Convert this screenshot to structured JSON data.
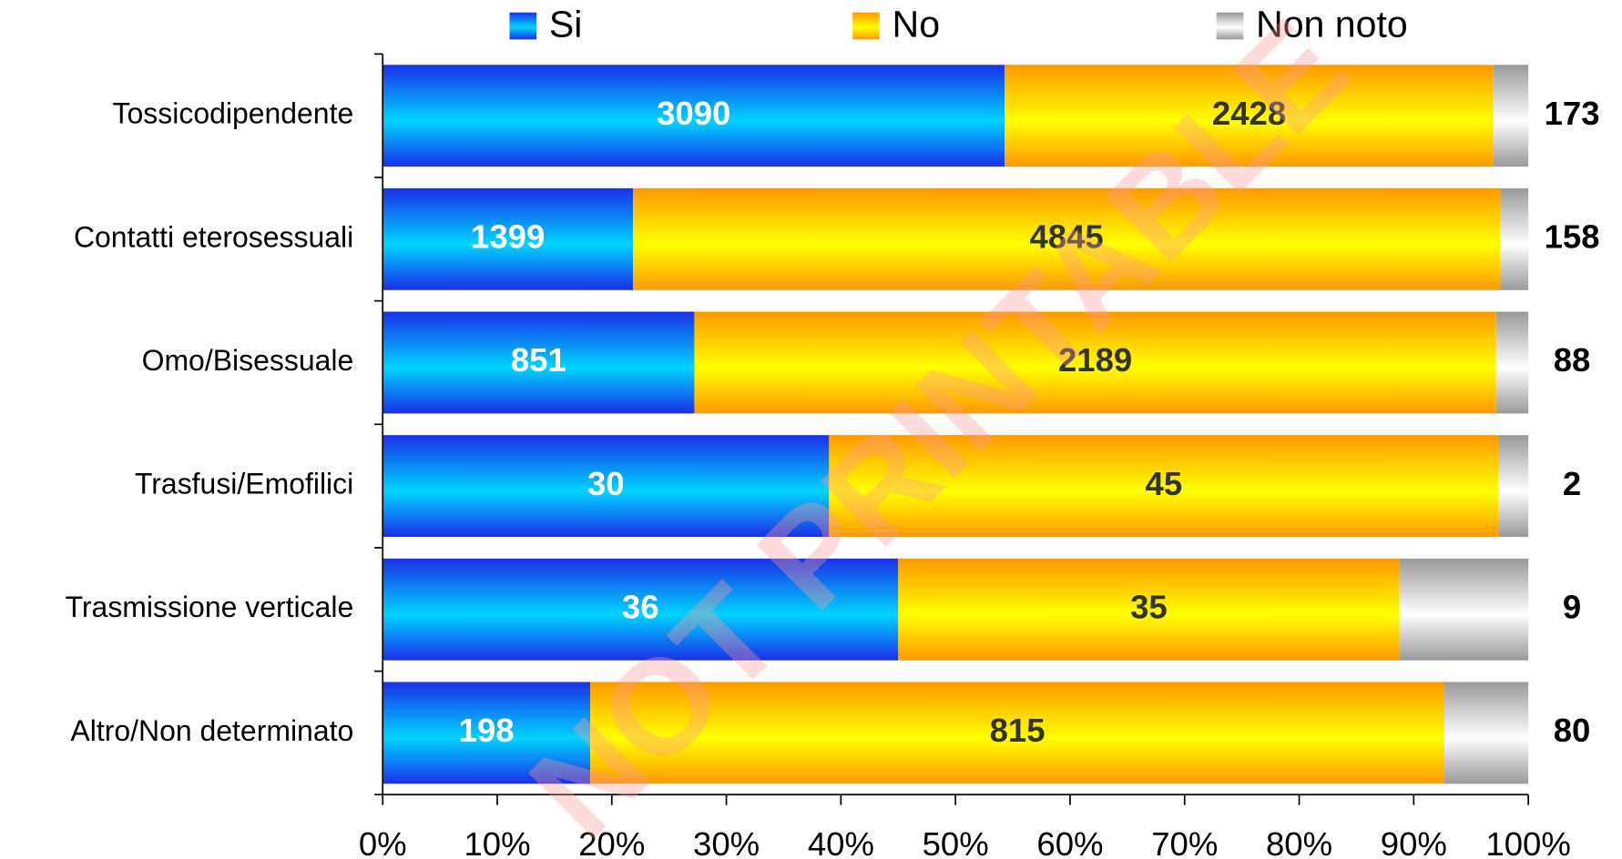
{
  "chart_data": {
    "type": "stacked_bar_percent",
    "orientation": "horizontal",
    "watermark": "NOT PRINTABLE",
    "categories": [
      "Tossicodipendente",
      "Contatti eterosessuali",
      "Omo/Bisessuale",
      "Trasfusi/Emofilici",
      "Trasmissione verticale",
      "Altro/Non determinato"
    ],
    "series": [
      {
        "name": "Si",
        "color": "#1a30e8",
        "highlight": "#00d4ff",
        "label_color": "#ffffff",
        "values": [
          3090,
          1399,
          851,
          30,
          36,
          198
        ]
      },
      {
        "name": "No",
        "color": "#ff9900",
        "highlight": "#ffff00",
        "label_color": "#333333",
        "values": [
          2428,
          4845,
          2189,
          45,
          35,
          815
        ]
      },
      {
        "name": "Non noto",
        "color": "#999999",
        "highlight": "#ffffff",
        "label_color": "#000000",
        "values": [
          173,
          158,
          88,
          2,
          9,
          80
        ]
      }
    ],
    "xlim": [
      0,
      100
    ],
    "xticks": [
      {
        "value": 0,
        "label": "0%"
      },
      {
        "value": 10,
        "label": "10%"
      },
      {
        "value": 20,
        "label": "20%"
      },
      {
        "value": 30,
        "label": "30%"
      },
      {
        "value": 40,
        "label": "40%"
      },
      {
        "value": 50,
        "label": "50%"
      },
      {
        "value": 60,
        "label": "60%"
      },
      {
        "value": 70,
        "label": "70%"
      },
      {
        "value": 80,
        "label": "80%"
      },
      {
        "value": 90,
        "label": "90%"
      },
      {
        "value": 100,
        "label": "100%"
      }
    ],
    "legend": "top"
  }
}
